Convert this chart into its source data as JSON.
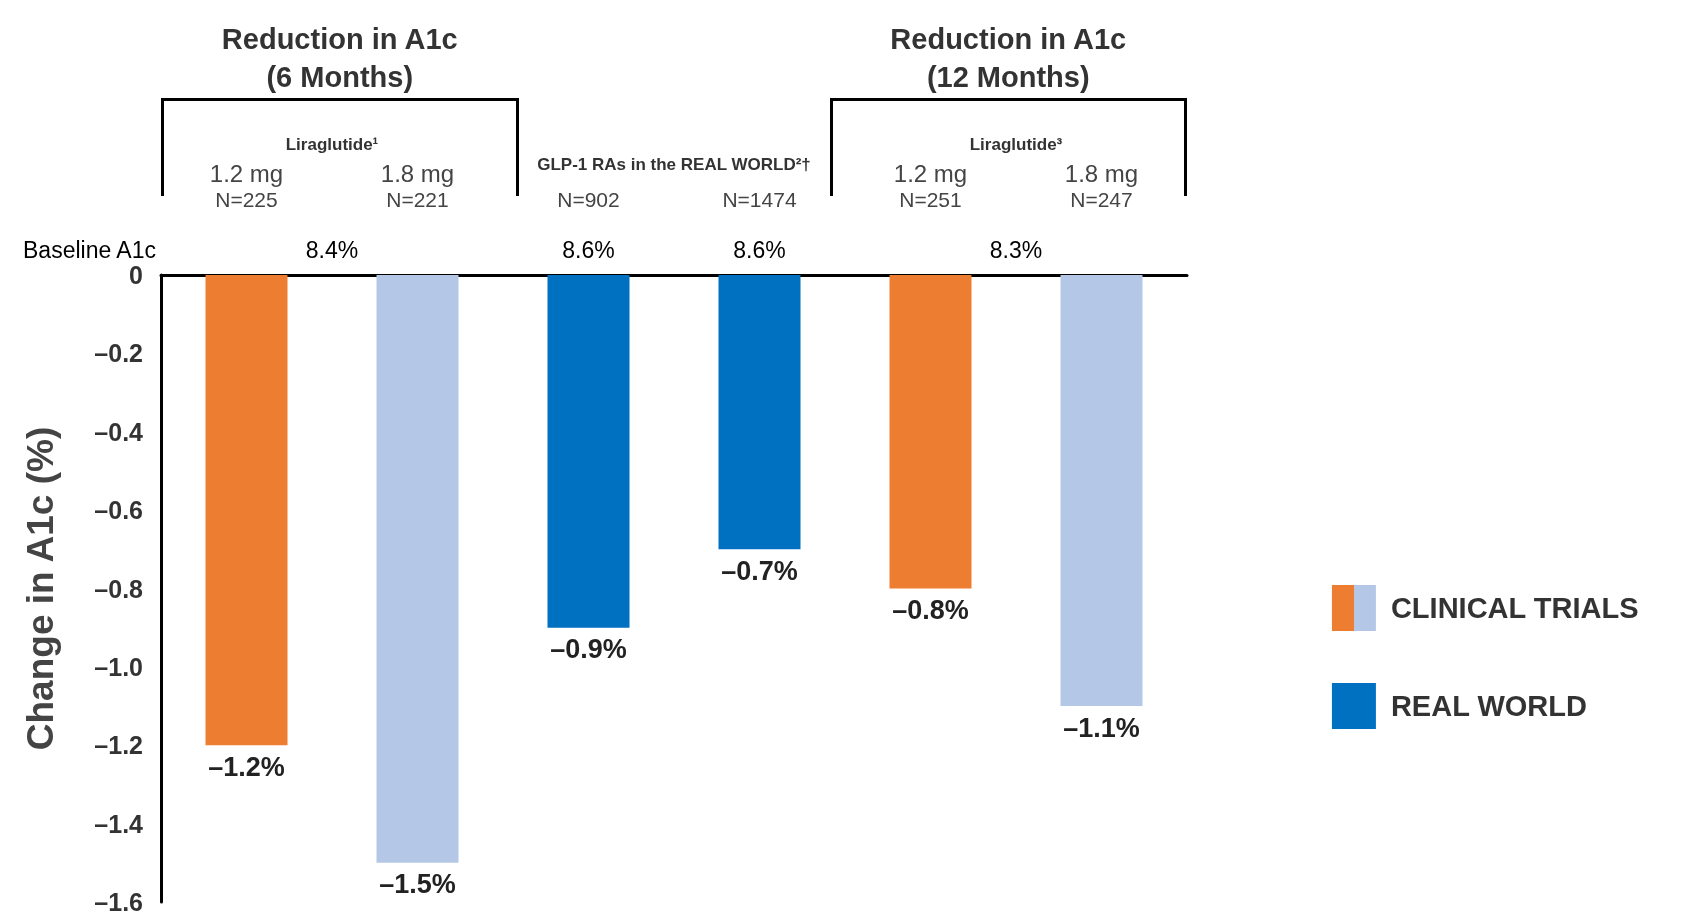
{
  "chart_data": {
    "type": "bar",
    "ylabel": "Change in A1c (%)",
    "categories": [
      "1.2 mg\nN=225",
      "1.8 mg\nN=221",
      "N=902",
      "N=1474",
      "1.2 mg\nN=251",
      "1.8 mg\nN=247"
    ],
    "series": [
      {
        "name": "CLINICAL TRIALS",
        "colors": [
          "#ed7d31",
          "#b4c7e7",
          null,
          null,
          "#ed7d31",
          "#b4c7e7"
        ],
        "values": [
          -1.2,
          -1.5,
          null,
          null,
          -0.8,
          -1.1
        ],
        "value_labels": [
          "–1.2%",
          "–1.5%",
          null,
          null,
          "–0.8%",
          "–1.1%"
        ]
      },
      {
        "name": "REAL WORLD",
        "color": "#0070c0",
        "values": [
          null,
          null,
          -0.9,
          -0.7,
          null,
          null
        ],
        "value_labels": [
          null,
          null,
          "–0.9%",
          "–0.7%",
          null,
          null
        ]
      }
    ],
    "ylim": [
      -1.6,
      0
    ],
    "yticks": [
      0,
      {
        "value": -0.2,
        "label": "–0.2"
      },
      {
        "value": -0.4,
        "label": "–0.4"
      },
      {
        "value": -0.6,
        "label": "–0.6"
      },
      {
        "value": -0.8,
        "label": "–0.8"
      },
      {
        "value": -1.0,
        "label": "–1.0"
      },
      {
        "value": -1.2,
        "label": "–1.2"
      },
      {
        "value": -1.4,
        "label": "–1.4"
      },
      {
        "value": -1.6,
        "label": "–1.6"
      }
    ],
    "annotations": [
      "Reduction in A1c\n(6 Months)",
      "Reduction in A1c\n(12 Months)",
      "Liraglutide¹",
      "GLP-1 RAs in the REAL WORLD²†",
      "Liraglutide³",
      "Baseline A1c",
      "8.4%",
      "8.6%",
      "8.6%",
      "8.3%"
    ],
    "legend": "right"
  }
}
